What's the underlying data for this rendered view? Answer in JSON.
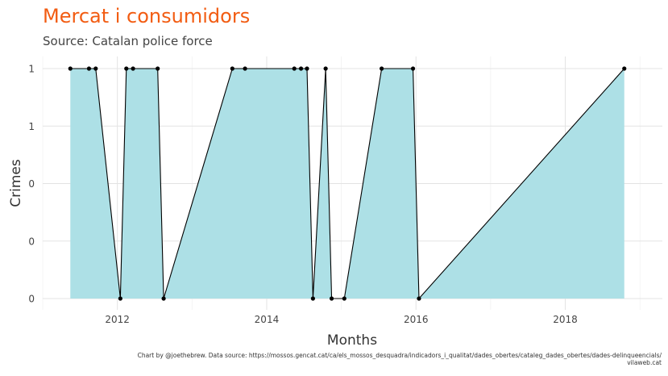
{
  "chart_data": {
    "type": "area",
    "title": "Mercat i consumidors",
    "subtitle": "Source: Catalan police force",
    "xlabel": "Months",
    "ylabel": "Crimes",
    "caption_lines": [
      "Chart by @joethebrew. Data source: https://mossos.gencat.cat/ca/els_mossos_desquadra/indicadors_i_qualitat/dades_obertes/cataleg_dades_obertes/dades-delinqueencials/",
      "vilaweb.cat"
    ],
    "x_ticks": [
      "2012",
      "2014",
      "2016",
      "2018"
    ],
    "y_tick_labels": [
      "0",
      "0",
      "0",
      "1",
      "1"
    ],
    "xlim": [
      2011.0,
      2019.3
    ],
    "ylim": [
      0,
      1
    ],
    "grid": true,
    "fill_color": "#ade0e6",
    "line_color": "#000000",
    "x": [
      2011.37,
      2011.62,
      2011.71,
      2012.04,
      2012.12,
      2012.21,
      2012.54,
      2012.62,
      2013.54,
      2013.71,
      2014.37,
      2014.46,
      2014.54,
      2014.62,
      2014.79,
      2014.87,
      2015.04,
      2015.54,
      2015.96,
      2016.04,
      2018.79
    ],
    "values": [
      1,
      1,
      1,
      0,
      1,
      1,
      1,
      0,
      1,
      1,
      1,
      1,
      1,
      0,
      1,
      0,
      0,
      1,
      1,
      0,
      1
    ]
  }
}
